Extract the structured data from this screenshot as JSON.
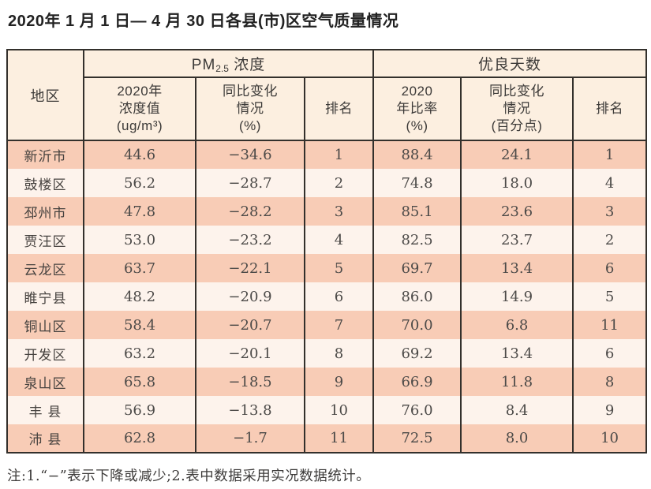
{
  "title": "2020年 1 月 1 日— 4 月 30 日各县(市)区空气质量情况",
  "note": "注:1.“−”表示下降或减少;2.表中数据采用实况数据统计。",
  "table": {
    "region_header": "地区",
    "pm_group": {
      "prefix": "PM",
      "sub": "2.5",
      "suffix": " 浓度"
    },
    "good_group": "优良天数",
    "sub_headers": {
      "pm_value": "2020年\n浓度值\n(ug/m³)",
      "pm_change": "同比变化\n情况\n(%)",
      "pm_rank": "排名",
      "good_rate": "2020\n年比率\n(%)",
      "good_change": "同比变化\n情况\n(百分点)",
      "good_rank": "排名"
    }
  },
  "colors": {
    "row_odd": "#f8ccb6",
    "row_even": "#fdf3ec",
    "header_bg": "#fcefe0",
    "border": "#33302c"
  },
  "chart_data": {
    "type": "table",
    "title": "2020年1月1日—4月30日各县(市)区空气质量情况",
    "columns": [
      "地区",
      "PM2.5浓度 2020年浓度值(ug/m³)",
      "PM2.5浓度 同比变化情况(%)",
      "PM2.5浓度 排名",
      "优良天数 2020年比率(%)",
      "优良天数 同比变化情况(百分点)",
      "优良天数 排名"
    ],
    "row_fields": [
      "region",
      "pm_value",
      "pm_change",
      "pm_rank",
      "good_rate",
      "good_change",
      "good_rank"
    ],
    "rows": [
      {
        "region": "新沂市",
        "pm_value": "44.6",
        "pm_change": "−34.6",
        "pm_rank": "1",
        "good_rate": "88.4",
        "good_change": "24.1",
        "good_rank": "1"
      },
      {
        "region": "鼓楼区",
        "pm_value": "56.2",
        "pm_change": "−28.7",
        "pm_rank": "2",
        "good_rate": "74.8",
        "good_change": "18.0",
        "good_rank": "4"
      },
      {
        "region": "邳州市",
        "pm_value": "47.8",
        "pm_change": "−28.2",
        "pm_rank": "3",
        "good_rate": "85.1",
        "good_change": "23.6",
        "good_rank": "3"
      },
      {
        "region": "贾汪区",
        "pm_value": "53.0",
        "pm_change": "−23.2",
        "pm_rank": "4",
        "good_rate": "82.5",
        "good_change": "23.7",
        "good_rank": "2"
      },
      {
        "region": "云龙区",
        "pm_value": "63.7",
        "pm_change": "−22.1",
        "pm_rank": "5",
        "good_rate": "69.7",
        "good_change": "13.4",
        "good_rank": "6"
      },
      {
        "region": "睢宁县",
        "pm_value": "48.2",
        "pm_change": "−20.9",
        "pm_rank": "6",
        "good_rate": "86.0",
        "good_change": "14.9",
        "good_rank": "5"
      },
      {
        "region": "铜山区",
        "pm_value": "58.4",
        "pm_change": "−20.7",
        "pm_rank": "7",
        "good_rate": "70.0",
        "good_change": "6.8",
        "good_rank": "11"
      },
      {
        "region": "开发区",
        "pm_value": "63.2",
        "pm_change": "−20.1",
        "pm_rank": "8",
        "good_rate": "69.2",
        "good_change": "13.4",
        "good_rank": "6"
      },
      {
        "region": "泉山区",
        "pm_value": "65.8",
        "pm_change": "−18.5",
        "pm_rank": "9",
        "good_rate": "66.9",
        "good_change": "11.8",
        "good_rank": "8"
      },
      {
        "region": "丰 县",
        "pm_value": "56.9",
        "pm_change": "−13.8",
        "pm_rank": "10",
        "good_rate": "76.0",
        "good_change": "8.4",
        "good_rank": "9"
      },
      {
        "region": "沛 县",
        "pm_value": "62.8",
        "pm_change": "−1.7",
        "pm_rank": "11",
        "good_rate": "72.5",
        "good_change": "8.0",
        "good_rank": "10"
      }
    ]
  }
}
